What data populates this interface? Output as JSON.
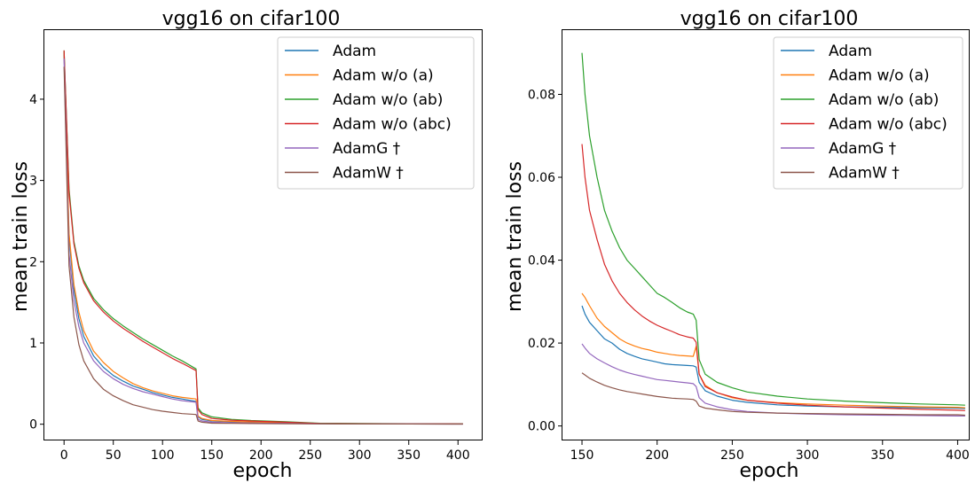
{
  "chart_data": [
    {
      "type": "line",
      "title": "vgg16 on cifar100",
      "xlabel": "epoch",
      "ylabel": "mean train loss",
      "xlim": [
        -20,
        425
      ],
      "ylim": [
        -0.2,
        4.85
      ],
      "xticks": [
        0,
        50,
        100,
        150,
        200,
        250,
        300,
        350,
        400
      ],
      "xtick_labels": [
        "0",
        "50",
        "100",
        "150",
        "200",
        "250",
        "300",
        "350",
        "400"
      ],
      "yticks": [
        0,
        1,
        2,
        3,
        4
      ],
      "ytick_labels": [
        "0",
        "1",
        "2",
        "3",
        "4"
      ],
      "grid": false,
      "legend_position": "top-right",
      "series": [
        {
          "name": "Adam",
          "color": "#1f77b4",
          "x": [
            0,
            5,
            10,
            15,
            20,
            30,
            40,
            50,
            60,
            70,
            80,
            90,
            100,
            110,
            120,
            134,
            136,
            140,
            150,
            170,
            190,
            225,
            260,
            300,
            350,
            405
          ],
          "y": [
            4.55,
            2.3,
            1.65,
            1.3,
            1.08,
            0.84,
            0.7,
            0.6,
            0.53,
            0.47,
            0.43,
            0.39,
            0.36,
            0.33,
            0.31,
            0.28,
            0.09,
            0.06,
            0.04,
            0.03,
            0.025,
            0.02,
            0.008,
            0.006,
            0.005,
            0.004
          ]
        },
        {
          "name": "Adam w/o (a)",
          "color": "#ff7f0e",
          "x": [
            0,
            5,
            10,
            15,
            20,
            30,
            40,
            50,
            60,
            70,
            80,
            90,
            100,
            110,
            120,
            134,
            136,
            140,
            150,
            170,
            190,
            225,
            260,
            300,
            350,
            405
          ],
          "y": [
            4.58,
            2.35,
            1.72,
            1.38,
            1.15,
            0.9,
            0.76,
            0.65,
            0.57,
            0.5,
            0.45,
            0.41,
            0.38,
            0.35,
            0.33,
            0.31,
            0.1,
            0.07,
            0.045,
            0.035,
            0.028,
            0.02,
            0.009,
            0.007,
            0.005,
            0.004
          ]
        },
        {
          "name": "Adam w/o (ab)",
          "color": "#2ca02c",
          "x": [
            0,
            5,
            10,
            15,
            20,
            30,
            40,
            50,
            60,
            70,
            80,
            90,
            100,
            110,
            120,
            134,
            136,
            140,
            150,
            170,
            190,
            225,
            260,
            300,
            350,
            405
          ],
          "y": [
            4.6,
            2.9,
            2.25,
            1.95,
            1.77,
            1.55,
            1.41,
            1.3,
            1.21,
            1.13,
            1.05,
            0.98,
            0.91,
            0.84,
            0.78,
            0.68,
            0.2,
            0.14,
            0.09,
            0.06,
            0.045,
            0.03,
            0.012,
            0.008,
            0.006,
            0.005
          ]
        },
        {
          "name": "Adam w/o (abc)",
          "color": "#d62728",
          "x": [
            0,
            5,
            10,
            15,
            20,
            30,
            40,
            50,
            60,
            70,
            80,
            90,
            100,
            110,
            120,
            134,
            136,
            140,
            150,
            170,
            190,
            225,
            260,
            300,
            350,
            405
          ],
          "y": [
            4.6,
            2.85,
            2.22,
            1.92,
            1.74,
            1.52,
            1.38,
            1.27,
            1.18,
            1.1,
            1.02,
            0.95,
            0.88,
            0.81,
            0.75,
            0.66,
            0.18,
            0.12,
            0.07,
            0.05,
            0.04,
            0.025,
            0.009,
            0.006,
            0.005,
            0.004
          ]
        },
        {
          "name": "AdamG †",
          "color": "#9467bd",
          "x": [
            0,
            5,
            10,
            15,
            20,
            30,
            40,
            50,
            60,
            70,
            80,
            90,
            100,
            110,
            120,
            134,
            136,
            140,
            150,
            170,
            190,
            225,
            260,
            300,
            350,
            405
          ],
          "y": [
            4.5,
            2.1,
            1.52,
            1.2,
            1.0,
            0.78,
            0.65,
            0.56,
            0.49,
            0.44,
            0.4,
            0.37,
            0.34,
            0.31,
            0.29,
            0.27,
            0.06,
            0.04,
            0.025,
            0.018,
            0.014,
            0.01,
            0.004,
            0.003,
            0.003,
            0.002
          ]
        },
        {
          "name": "AdamW †",
          "color": "#8c564b",
          "x": [
            0,
            5,
            10,
            15,
            20,
            30,
            40,
            50,
            60,
            70,
            80,
            90,
            100,
            110,
            120,
            134,
            136,
            140,
            150,
            170,
            190,
            225,
            260,
            300,
            350,
            405
          ],
          "y": [
            4.4,
            1.95,
            1.32,
            0.98,
            0.78,
            0.56,
            0.43,
            0.35,
            0.29,
            0.24,
            0.21,
            0.18,
            0.16,
            0.145,
            0.13,
            0.12,
            0.04,
            0.025,
            0.013,
            0.01,
            0.008,
            0.006,
            0.004,
            0.003,
            0.003,
            0.002
          ]
        }
      ]
    },
    {
      "type": "line",
      "title": "vgg16 on cifar100",
      "xlabel": "epoch",
      "ylabel": "mean train loss",
      "xlim": [
        137,
        408
      ],
      "ylim": [
        -0.0035,
        0.0955
      ],
      "xticks": [
        150,
        200,
        250,
        300,
        350,
        400
      ],
      "xtick_labels": [
        "150",
        "200",
        "250",
        "300",
        "350",
        "400"
      ],
      "yticks": [
        0,
        0.02,
        0.04,
        0.06,
        0.08
      ],
      "ytick_labels": [
        "0.00",
        "0.02",
        "0.04",
        "0.06",
        "0.08"
      ],
      "grid": false,
      "legend_position": "top-right",
      "series": [
        {
          "name": "Adam",
          "color": "#1f77b4",
          "x": [
            150,
            152,
            155,
            160,
            165,
            170,
            175,
            180,
            185,
            190,
            195,
            200,
            205,
            210,
            215,
            220,
            224,
            226,
            228,
            232,
            240,
            250,
            260,
            280,
            300,
            325,
            350,
            375,
            400,
            405
          ],
          "y": [
            0.029,
            0.027,
            0.025,
            0.023,
            0.021,
            0.02,
            0.0185,
            0.0175,
            0.0168,
            0.0162,
            0.0158,
            0.0154,
            0.015,
            0.0148,
            0.0147,
            0.0146,
            0.0145,
            0.0142,
            0.0105,
            0.0085,
            0.0072,
            0.0062,
            0.0057,
            0.0051,
            0.0048,
            0.0046,
            0.0045,
            0.0044,
            0.0043,
            0.0042
          ]
        },
        {
          "name": "Adam w/o (a)",
          "color": "#ff7f0e",
          "x": [
            150,
            152,
            155,
            160,
            165,
            170,
            175,
            180,
            185,
            190,
            195,
            200,
            205,
            210,
            215,
            220,
            224,
            226,
            228,
            232,
            240,
            250,
            260,
            280,
            300,
            325,
            350,
            375,
            400,
            405
          ],
          "y": [
            0.032,
            0.031,
            0.029,
            0.026,
            0.024,
            0.0225,
            0.021,
            0.02,
            0.0193,
            0.0187,
            0.0183,
            0.0178,
            0.0175,
            0.0172,
            0.017,
            0.0169,
            0.0168,
            0.0192,
            0.0125,
            0.0098,
            0.008,
            0.0068,
            0.0062,
            0.0056,
            0.0053,
            0.005,
            0.0048,
            0.0046,
            0.0045,
            0.0044
          ]
        },
        {
          "name": "Adam w/o (ab)",
          "color": "#2ca02c",
          "x": [
            150,
            152,
            155,
            160,
            165,
            170,
            175,
            180,
            185,
            190,
            195,
            200,
            205,
            210,
            215,
            220,
            224,
            226,
            228,
            232,
            240,
            250,
            260,
            280,
            300,
            325,
            350,
            375,
            400,
            405
          ],
          "y": [
            0.09,
            0.08,
            0.07,
            0.06,
            0.052,
            0.047,
            0.043,
            0.04,
            0.038,
            0.036,
            0.034,
            0.032,
            0.031,
            0.0298,
            0.0285,
            0.0275,
            0.027,
            0.0255,
            0.016,
            0.0125,
            0.0105,
            0.0092,
            0.0082,
            0.0072,
            0.0065,
            0.006,
            0.0056,
            0.0053,
            0.0051,
            0.005
          ]
        },
        {
          "name": "Adam w/o (abc)",
          "color": "#d62728",
          "x": [
            150,
            152,
            155,
            160,
            165,
            170,
            175,
            180,
            185,
            190,
            195,
            200,
            205,
            210,
            215,
            220,
            224,
            226,
            228,
            232,
            240,
            250,
            260,
            280,
            300,
            325,
            350,
            375,
            400,
            405
          ],
          "y": [
            0.068,
            0.06,
            0.052,
            0.045,
            0.039,
            0.035,
            0.032,
            0.0298,
            0.028,
            0.0265,
            0.0253,
            0.0243,
            0.0235,
            0.0228,
            0.022,
            0.0215,
            0.0212,
            0.0202,
            0.0125,
            0.0095,
            0.008,
            0.007,
            0.0062,
            0.0055,
            0.005,
            0.0046,
            0.0043,
            0.004,
            0.0038,
            0.0037
          ]
        },
        {
          "name": "AdamG †",
          "color": "#9467bd",
          "x": [
            150,
            152,
            155,
            160,
            165,
            170,
            175,
            180,
            185,
            190,
            195,
            200,
            205,
            210,
            215,
            220,
            224,
            226,
            228,
            232,
            240,
            250,
            260,
            280,
            300,
            325,
            350,
            375,
            400,
            405
          ],
          "y": [
            0.0198,
            0.0188,
            0.0175,
            0.0162,
            0.0152,
            0.0143,
            0.0135,
            0.0129,
            0.0124,
            0.012,
            0.0116,
            0.0112,
            0.011,
            0.0108,
            0.0106,
            0.0104,
            0.0102,
            0.0095,
            0.0068,
            0.0055,
            0.0046,
            0.0039,
            0.0035,
            0.0031,
            0.0029,
            0.0027,
            0.0026,
            0.0025,
            0.0024,
            0.0024
          ]
        },
        {
          "name": "AdamW †",
          "color": "#8c564b",
          "x": [
            150,
            152,
            155,
            160,
            165,
            170,
            175,
            180,
            185,
            190,
            195,
            200,
            205,
            210,
            215,
            220,
            224,
            226,
            228,
            232,
            240,
            250,
            260,
            280,
            300,
            325,
            350,
            375,
            400,
            405
          ],
          "y": [
            0.0128,
            0.0123,
            0.0115,
            0.0106,
            0.0098,
            0.0092,
            0.0087,
            0.0083,
            0.008,
            0.0077,
            0.0074,
            0.0071,
            0.0069,
            0.0067,
            0.0066,
            0.0065,
            0.0064,
            0.006,
            0.0048,
            0.0043,
            0.0039,
            0.0035,
            0.0033,
            0.0031,
            0.003,
            0.0029,
            0.0028,
            0.0027,
            0.0027,
            0.0026
          ]
        }
      ]
    }
  ]
}
